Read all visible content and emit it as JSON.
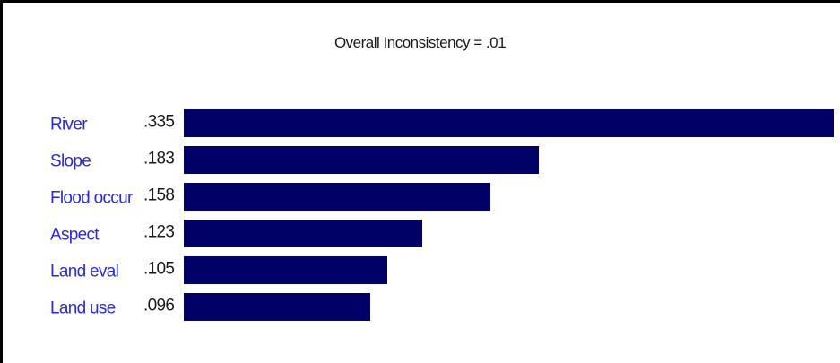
{
  "chart_data": {
    "type": "bar",
    "orientation": "horizontal",
    "title": "Overall Inconsistency = .01",
    "categories": [
      "River",
      "Slope",
      "Flood occur",
      "Aspect",
      "Land eval",
      "Land use"
    ],
    "values": [
      0.335,
      0.183,
      0.158,
      0.123,
      0.105,
      0.096
    ],
    "value_labels": [
      ".335",
      ".183",
      ".158",
      ".123",
      ".105",
      ".096"
    ],
    "xlabel": "",
    "ylabel": "",
    "xlim": [
      0,
      0.335
    ],
    "grid": false,
    "colors": {
      "bar": "#000066",
      "category_label": "#2a2ad6",
      "value_label": "#1a1a1a"
    }
  }
}
